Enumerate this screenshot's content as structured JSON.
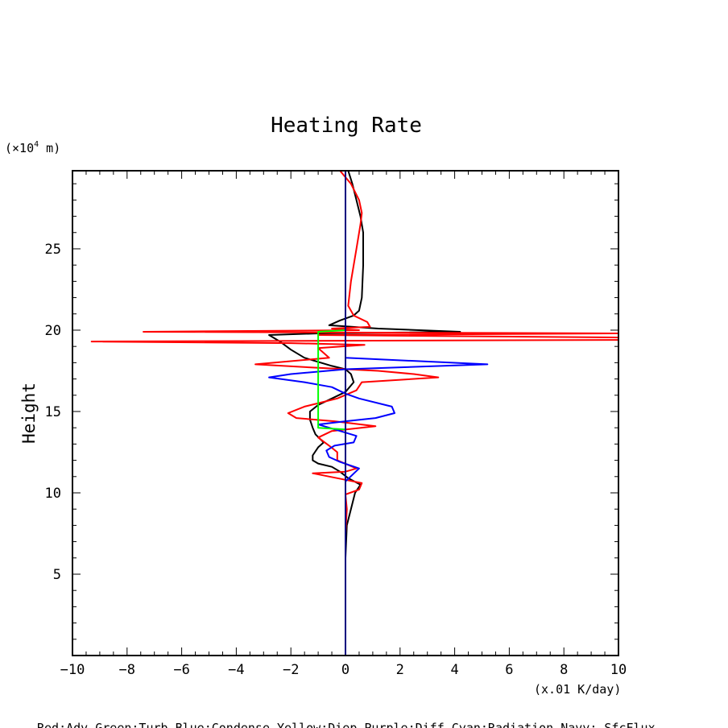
{
  "chart_data": {
    "type": "line",
    "title": "Heating Rate",
    "ylabel": "Height",
    "y_unit_prefix": "(×10",
    "y_unit_exp": "4",
    "y_unit_suffix": " m)",
    "x_unit": "(x.01 K/day)",
    "legend_text": "Red:Adv  Green:Turb  Blue:Condense  Yellow:Diep  Purple:Diff  Cyan:Radiation  Navy: SfcFlux",
    "xlim": [
      -10,
      10
    ],
    "ylim": [
      0,
      29.8
    ],
    "x_ticks": [
      -10,
      -8,
      -6,
      -4,
      -2,
      0,
      2,
      4,
      6,
      8,
      10
    ],
    "x_tick_labels": [
      "−10",
      "−8",
      "−6",
      "−4",
      "−2",
      "0",
      "2",
      "4",
      "6",
      "8",
      "10"
    ],
    "y_ticks": [
      5,
      10,
      15,
      20,
      25
    ],
    "y_tick_labels": [
      "5",
      "10",
      "15",
      "20",
      "25"
    ],
    "colors": {
      "black": "#000000",
      "red": "#ff0000",
      "blue": "#0000ff",
      "green": "#00ff00",
      "navy": "#00007f"
    },
    "series": [
      {
        "color": "#000000",
        "points": [
          [
            0,
            6
          ],
          [
            0.05,
            8
          ],
          [
            0.2,
            9
          ],
          [
            0.35,
            10
          ],
          [
            0.55,
            10.5
          ],
          [
            0.1,
            10.9
          ],
          [
            -0.2,
            11.3
          ],
          [
            -0.5,
            11.6
          ],
          [
            -1.0,
            11.8
          ],
          [
            -1.2,
            12.0
          ],
          [
            -1.2,
            12.3
          ],
          [
            -1.0,
            12.8
          ],
          [
            -0.8,
            13.1
          ],
          [
            -1.1,
            13.6
          ],
          [
            -1.2,
            14.0
          ],
          [
            -1.3,
            14.5
          ],
          [
            -1.3,
            15.0
          ],
          [
            -1.0,
            15.4
          ],
          [
            -0.5,
            15.8
          ],
          [
            0,
            16.2
          ],
          [
            0.3,
            16.8
          ],
          [
            0.2,
            17.3
          ],
          [
            0,
            17.6
          ],
          [
            -0.5,
            17.8
          ],
          [
            -1.5,
            18.3
          ],
          [
            -2.0,
            18.8
          ],
          [
            -2.4,
            19.3
          ],
          [
            -2.8,
            19.7
          ],
          [
            -1.0,
            19.8
          ],
          [
            4.2,
            19.9
          ],
          [
            1.2,
            20.1
          ],
          [
            -0.6,
            20.3
          ],
          [
            -0.2,
            20.6
          ],
          [
            0.3,
            20.9
          ],
          [
            0.5,
            21.2
          ],
          [
            0.6,
            22
          ],
          [
            0.65,
            24
          ],
          [
            0.65,
            26
          ],
          [
            0.55,
            27
          ],
          [
            0.4,
            28
          ],
          [
            0.25,
            29
          ],
          [
            0.1,
            29.8
          ]
        ]
      },
      {
        "color": "#ff0000",
        "points": [
          [
            0,
            7.5
          ],
          [
            0.05,
            9
          ],
          [
            0,
            9.9
          ],
          [
            0.5,
            10.2
          ],
          [
            0.6,
            10.6
          ],
          [
            0,
            10.8
          ],
          [
            -1.2,
            11.2
          ],
          [
            0,
            11.3
          ],
          [
            0.4,
            11.5
          ],
          [
            -0.3,
            12.0
          ],
          [
            -0.3,
            12.5
          ],
          [
            -0.6,
            12.9
          ],
          [
            -1.0,
            13.4
          ],
          [
            -0.5,
            13.8
          ],
          [
            1.1,
            14.1
          ],
          [
            -0.4,
            14.4
          ],
          [
            -1.8,
            14.6
          ],
          [
            -2.1,
            14.9
          ],
          [
            -1.5,
            15.3
          ],
          [
            -0.3,
            15.8
          ],
          [
            0.4,
            16.3
          ],
          [
            0.6,
            16.8
          ],
          [
            3.4,
            17.1
          ],
          [
            2.5,
            17.3
          ],
          [
            1.2,
            17.5
          ],
          [
            -1.2,
            17.7
          ],
          [
            -3.3,
            17.9
          ],
          [
            -0.6,
            18.3
          ],
          [
            -0.8,
            18.6
          ],
          [
            -1.0,
            18.9
          ],
          [
            0.7,
            19.1
          ],
          [
            -2.0,
            19.2
          ],
          [
            -9.3,
            19.3
          ],
          [
            10,
            19.4
          ],
          [
            10,
            19.55
          ],
          [
            -1.0,
            19.7
          ],
          [
            10,
            19.8
          ],
          [
            -7.4,
            19.9
          ],
          [
            0.5,
            20.0
          ],
          [
            -0.5,
            20.1
          ],
          [
            0.9,
            20.2
          ],
          [
            0.8,
            20.5
          ],
          [
            0.3,
            20.9
          ],
          [
            0.1,
            21.5
          ],
          [
            0.2,
            23
          ],
          [
            0.4,
            25
          ],
          [
            0.55,
            26.5
          ],
          [
            0.6,
            27.2
          ],
          [
            0.5,
            28
          ],
          [
            0.2,
            29
          ],
          [
            -0.2,
            29.8
          ]
        ]
      },
      {
        "color": "#0000ff",
        "points": [
          [
            0,
            10.7
          ],
          [
            0.5,
            11.5
          ],
          [
            -0.2,
            11.9
          ],
          [
            -0.6,
            12.2
          ],
          [
            -0.7,
            12.6
          ],
          [
            -0.4,
            12.9
          ],
          [
            0.3,
            13.1
          ],
          [
            0.4,
            13.5
          ],
          [
            0,
            13.7
          ],
          [
            -1.0,
            14.2
          ],
          [
            0,
            14.4
          ],
          [
            1.1,
            14.6
          ],
          [
            1.8,
            14.9
          ],
          [
            1.7,
            15.3
          ],
          [
            0.5,
            15.8
          ],
          [
            0,
            16.1
          ],
          [
            -0.5,
            16.5
          ],
          [
            -1.5,
            16.8
          ],
          [
            -2.8,
            17.1
          ],
          [
            -2.0,
            17.3
          ],
          [
            0,
            17.6
          ],
          [
            3.5,
            17.8
          ],
          [
            5.2,
            17.9
          ],
          [
            0,
            18.3
          ],
          [
            0,
            19.5
          ],
          [
            0,
            20.0
          ]
        ]
      },
      {
        "color": "#00ff00",
        "points": [
          [
            0,
            13.9
          ],
          [
            -1.0,
            14.0
          ],
          [
            -1.0,
            14.5
          ],
          [
            -1.0,
            19.9
          ],
          [
            0,
            20.0
          ]
        ]
      },
      {
        "color": "#00007f",
        "points": [
          [
            0,
            0
          ],
          [
            0,
            29.8
          ]
        ]
      }
    ]
  }
}
